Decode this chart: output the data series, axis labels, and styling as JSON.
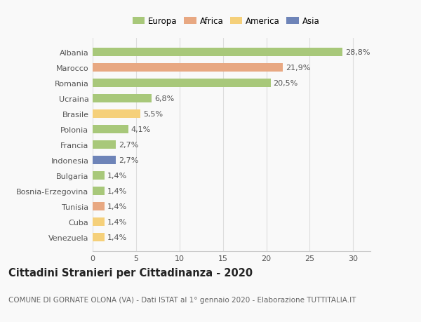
{
  "countries": [
    "Albania",
    "Marocco",
    "Romania",
    "Ucraina",
    "Brasile",
    "Polonia",
    "Francia",
    "Indonesia",
    "Bulgaria",
    "Bosnia-Erzegovina",
    "Tunisia",
    "Cuba",
    "Venezuela"
  ],
  "values": [
    28.8,
    21.9,
    20.5,
    6.8,
    5.5,
    4.1,
    2.7,
    2.7,
    1.4,
    1.4,
    1.4,
    1.4,
    1.4
  ],
  "labels": [
    "28,8%",
    "21,9%",
    "20,5%",
    "6,8%",
    "5,5%",
    "4,1%",
    "2,7%",
    "2,7%",
    "1,4%",
    "1,4%",
    "1,4%",
    "1,4%",
    "1,4%"
  ],
  "colors": [
    "#a8c87a",
    "#e8a882",
    "#a8c87a",
    "#a8c87a",
    "#f5d07a",
    "#a8c87a",
    "#a8c87a",
    "#6e84b8",
    "#a8c87a",
    "#a8c87a",
    "#e8a882",
    "#f5d07a",
    "#f5d07a"
  ],
  "legend": [
    {
      "label": "Europa",
      "color": "#a8c87a"
    },
    {
      "label": "Africa",
      "color": "#e8a882"
    },
    {
      "label": "America",
      "color": "#f5d07a"
    },
    {
      "label": "Asia",
      "color": "#6e84b8"
    }
  ],
  "xlim": [
    0,
    32
  ],
  "xticks": [
    0,
    5,
    10,
    15,
    20,
    25,
    30
  ],
  "title": "Cittadini Stranieri per Cittadinanza - 2020",
  "subtitle": "COMUNE DI GORNATE OLONA (VA) - Dati ISTAT al 1° gennaio 2020 - Elaborazione TUTTITALIA.IT",
  "background_color": "#f9f9f9",
  "bar_height": 0.55,
  "title_fontsize": 10.5,
  "subtitle_fontsize": 7.5,
  "label_fontsize": 8.0,
  "tick_fontsize": 8.0,
  "legend_fontsize": 8.5
}
